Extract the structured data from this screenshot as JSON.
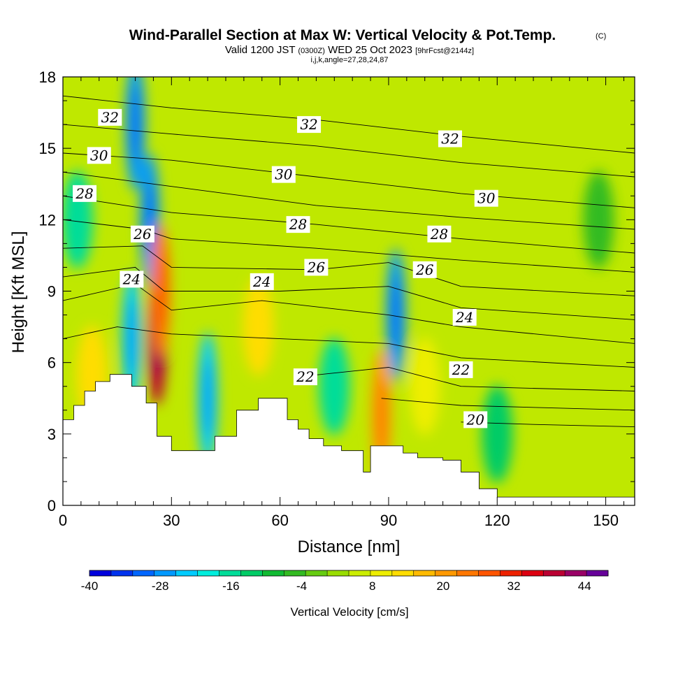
{
  "title": {
    "main": "Wind-Parallel Section at Max W: Vertical Velocity & Pot.Temp.",
    "copyright": "(C)",
    "subtitle_lead": "Valid 1200 JST",
    "subtitle_utc": "(0300Z)",
    "subtitle_date": "WED 25 Oct 2023",
    "subtitle_fcst": "[9hrFcst@2144z]",
    "info": "i,j,k,angle=27,28,24,87"
  },
  "chart_data": {
    "type": "heatmap",
    "xlabel": "Distance [nm]",
    "ylabel": "Height [Kft MSL]",
    "xlim": [
      0,
      158
    ],
    "ylim": [
      0,
      18
    ],
    "x_ticks": [
      0,
      30,
      60,
      90,
      120,
      150
    ],
    "y_ticks": [
      0,
      3,
      6,
      9,
      12,
      15,
      18
    ],
    "colorbar": {
      "title": "Vertical Velocity [cm/s]",
      "min": -40,
      "max": 48,
      "step": 4,
      "tick_labels": [
        -40,
        -28,
        -16,
        -4,
        8,
        20,
        32,
        44
      ],
      "colors": [
        "#0000dd",
        "#0033ee",
        "#0066ff",
        "#0099ff",
        "#00ccff",
        "#00eedd",
        "#00dd99",
        "#00cc66",
        "#11bb33",
        "#33bb22",
        "#66cc11",
        "#99dd00",
        "#ccee00",
        "#eeee00",
        "#ffdd00",
        "#ffbb00",
        "#ff9900",
        "#ff7700",
        "#ff5500",
        "#ee2200",
        "#dd0011",
        "#bb0033",
        "#990066",
        "#660099"
      ]
    },
    "features": [
      {
        "x": 24,
        "y": 12,
        "w": -26
      },
      {
        "x": 20,
        "y": 16,
        "w": -28
      },
      {
        "x": 26,
        "y": 7,
        "w": 44
      },
      {
        "x": 27,
        "y": 9,
        "w": 28
      },
      {
        "x": 19,
        "y": 7,
        "w": -22
      },
      {
        "x": 40,
        "y": 4.5,
        "w": -22
      },
      {
        "x": 54,
        "y": 7.5,
        "w": 16
      },
      {
        "x": 88,
        "y": 3.8,
        "w": 24
      },
      {
        "x": 92,
        "y": 8,
        "w": -26
      },
      {
        "x": 100,
        "y": 5,
        "w": 14
      },
      {
        "x": 4,
        "y": 12,
        "w": -14
      },
      {
        "x": 8,
        "y": 5.5,
        "w": 16
      },
      {
        "x": 75,
        "y": 5,
        "w": -14
      },
      {
        "x": 120,
        "y": 3,
        "w": -12
      },
      {
        "x": 148,
        "y": 12,
        "w": -4
      }
    ],
    "terrain": [
      [
        0,
        3.6
      ],
      [
        3,
        4.2
      ],
      [
        6,
        4.8
      ],
      [
        9,
        5.2
      ],
      [
        13,
        5.5
      ],
      [
        19,
        5.0
      ],
      [
        23,
        4.3
      ],
      [
        26,
        2.9
      ],
      [
        30,
        2.3
      ],
      [
        36,
        2.3
      ],
      [
        42,
        2.9
      ],
      [
        48,
        4.0
      ],
      [
        54,
        4.5
      ],
      [
        58,
        4.5
      ],
      [
        62,
        3.6
      ],
      [
        65,
        3.2
      ],
      [
        68,
        2.8
      ],
      [
        72,
        2.5
      ],
      [
        77,
        2.3
      ],
      [
        83,
        1.4
      ],
      [
        85,
        2.5
      ],
      [
        90,
        2.5
      ],
      [
        94,
        2.2
      ],
      [
        98,
        2.0
      ],
      [
        105,
        1.9
      ],
      [
        110,
        1.4
      ],
      [
        115,
        0.7
      ],
      [
        120,
        0.35
      ],
      [
        158,
        0.35
      ]
    ],
    "contour_labels": [
      {
        "text": "32",
        "x": 13,
        "y": 16.3
      },
      {
        "text": "32",
        "x": 68,
        "y": 16.0
      },
      {
        "text": "32",
        "x": 107,
        "y": 15.4
      },
      {
        "text": "30",
        "x": 10,
        "y": 14.7
      },
      {
        "text": "30",
        "x": 61,
        "y": 13.9
      },
      {
        "text": "30",
        "x": 117,
        "y": 12.9
      },
      {
        "text": "28",
        "x": 6,
        "y": 13.1
      },
      {
        "text": "28",
        "x": 65,
        "y": 11.8
      },
      {
        "text": "28",
        "x": 104,
        "y": 11.4
      },
      {
        "text": "26",
        "x": 22,
        "y": 11.4
      },
      {
        "text": "26",
        "x": 70,
        "y": 10.0
      },
      {
        "text": "26",
        "x": 100,
        "y": 9.9
      },
      {
        "text": "24",
        "x": 19,
        "y": 9.5
      },
      {
        "text": "24",
        "x": 55,
        "y": 9.4
      },
      {
        "text": "24",
        "x": 111,
        "y": 7.9
      },
      {
        "text": "22",
        "x": 67,
        "y": 5.4
      },
      {
        "text": "22",
        "x": 110,
        "y": 5.7
      },
      {
        "text": "20",
        "x": 114,
        "y": 3.6
      }
    ],
    "isentropes": [
      {
        "theta": 32,
        "points": [
          [
            0,
            17.2
          ],
          [
            30,
            16.7
          ],
          [
            70,
            16.2
          ],
          [
            110,
            15.5
          ],
          [
            158,
            14.8
          ]
        ]
      },
      {
        "theta": 31,
        "points": [
          [
            0,
            16.0
          ],
          [
            30,
            15.6
          ],
          [
            70,
            15.1
          ],
          [
            110,
            14.4
          ],
          [
            158,
            13.8
          ]
        ]
      },
      {
        "theta": 30,
        "points": [
          [
            0,
            14.8
          ],
          [
            30,
            14.5
          ],
          [
            70,
            13.8
          ],
          [
            110,
            13.1
          ],
          [
            158,
            12.5
          ]
        ]
      },
      {
        "theta": 29,
        "points": [
          [
            0,
            14.0
          ],
          [
            30,
            13.4
          ],
          [
            70,
            12.6
          ],
          [
            110,
            12.1
          ],
          [
            158,
            11.6
          ]
        ]
      },
      {
        "theta": 28,
        "points": [
          [
            0,
            13.0
          ],
          [
            30,
            12.3
          ],
          [
            70,
            11.8
          ],
          [
            110,
            11.2
          ],
          [
            158,
            10.6
          ]
        ]
      },
      {
        "theta": 27,
        "points": [
          [
            0,
            12.0
          ],
          [
            22,
            11.6
          ],
          [
            30,
            11.2
          ],
          [
            70,
            10.8
          ],
          [
            110,
            10.3
          ],
          [
            158,
            9.8
          ]
        ]
      },
      {
        "theta": 26,
        "points": [
          [
            0,
            10.8
          ],
          [
            22,
            10.9
          ],
          [
            30,
            10.0
          ],
          [
            70,
            9.9
          ],
          [
            90,
            10.2
          ],
          [
            110,
            9.2
          ],
          [
            158,
            8.8
          ]
        ]
      },
      {
        "theta": 25,
        "points": [
          [
            0,
            9.6
          ],
          [
            20,
            10.0
          ],
          [
            28,
            9.0
          ],
          [
            60,
            9.0
          ],
          [
            90,
            9.2
          ],
          [
            110,
            8.3
          ],
          [
            158,
            7.8
          ]
        ]
      },
      {
        "theta": 24,
        "points": [
          [
            0,
            8.6
          ],
          [
            20,
            9.3
          ],
          [
            30,
            8.2
          ],
          [
            55,
            8.6
          ],
          [
            90,
            8.0
          ],
          [
            110,
            7.5
          ],
          [
            158,
            6.8
          ]
        ]
      },
      {
        "theta": 23,
        "points": [
          [
            0,
            7.0
          ],
          [
            15,
            7.5
          ],
          [
            30,
            7.2
          ],
          [
            60,
            7.0
          ],
          [
            90,
            6.8
          ],
          [
            110,
            6.2
          ],
          [
            158,
            5.8
          ]
        ]
      },
      {
        "theta": 22,
        "points": [
          [
            65,
            5.4
          ],
          [
            90,
            5.8
          ],
          [
            110,
            5.0
          ],
          [
            158,
            4.8
          ]
        ]
      },
      {
        "theta": 21,
        "points": [
          [
            88,
            4.5
          ],
          [
            110,
            4.2
          ],
          [
            158,
            4.0
          ]
        ]
      },
      {
        "theta": 20,
        "points": [
          [
            110,
            3.5
          ],
          [
            130,
            3.4
          ],
          [
            158,
            3.3
          ]
        ]
      }
    ]
  }
}
